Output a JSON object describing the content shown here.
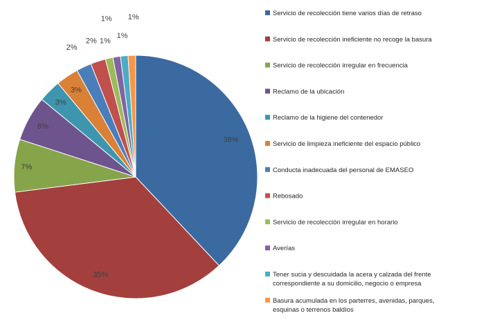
{
  "chart_data": {
    "type": "pie",
    "title": "",
    "legend_position": "right",
    "series": [
      {
        "name": "Servicio de recolección tiene varios días de retraso",
        "value": 38,
        "label": "38%",
        "color": "#3B6AA0"
      },
      {
        "name": "Servicio de recolección ineficiente no recoge la basura",
        "value": 35,
        "label": "35%",
        "color": "#A3403D"
      },
      {
        "name": "Servicio de recolección irregular en frecuencia",
        "value": 7,
        "label": "7%",
        "color": "#86A44A"
      },
      {
        "name": "Reclamo de la ubicación",
        "value": 6,
        "label": "6%",
        "color": "#6E548D"
      },
      {
        "name": "Reclamo de la higiene del contenedor",
        "value": 3,
        "label": "3%",
        "color": "#3D96AE"
      },
      {
        "name": "Servicio de limpieza ineficiente del espacio público",
        "value": 3,
        "label": "3%",
        "color": "#DA8137"
      },
      {
        "name": "Conducta inadecuada del personal de EMASEO",
        "value": 2,
        "label": "2%",
        "color": "#4A7EBB"
      },
      {
        "name": "Rebosado",
        "value": 2,
        "label": "2%",
        "color": "#C0504D"
      },
      {
        "name": "Servicio de recolección irregular en horario",
        "value": 1,
        "label": "1%",
        "color": "#9BBB59"
      },
      {
        "name": "Averías",
        "value": 1,
        "label": "1%",
        "color": "#8064A2"
      },
      {
        "name": "Tener sucia y descuidada la acera y calzada del frente correspondiente a su domicilio, negocio o empresa",
        "value": 1,
        "label": "1%",
        "color": "#4BACC6"
      },
      {
        "name": "Basura acumulada en los parterres, avenidas, parques, esquinas o terrenos baldíos",
        "value": 1,
        "label": "1%",
        "color": "#F79646"
      }
    ]
  }
}
